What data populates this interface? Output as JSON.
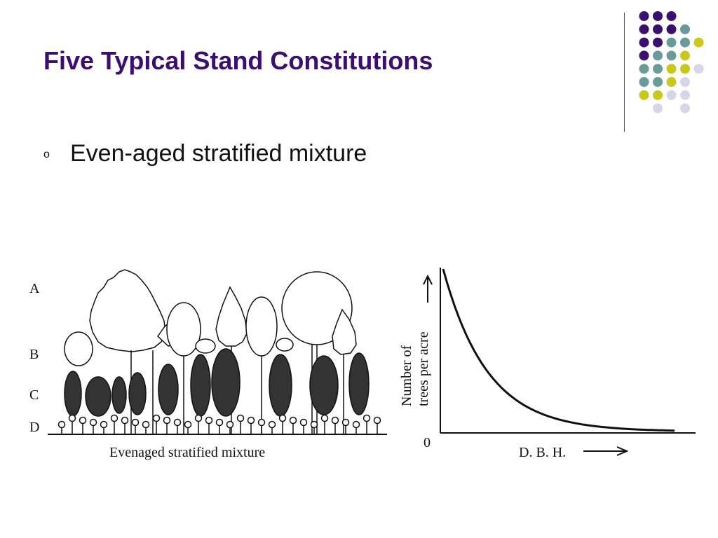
{
  "slide": {
    "title": "Five Typical Stand Constitutions",
    "bullet_marker": "o",
    "bullet_text": "Even-aged stratified mixture"
  },
  "figure": {
    "stratum_labels": [
      "A",
      "B",
      "C",
      "D"
    ],
    "stand_caption": "Evenaged stratified mixture",
    "graph_y_label_line1": "Number of",
    "graph_y_label_line2": "trees per acre",
    "graph_x_label": "D. B. H.",
    "graph_origin": "0"
  },
  "decor": {
    "colors": {
      "purple": "#3b0f6e",
      "teal": "#6b9a9a",
      "yellow": "#c8c81e",
      "lavender": "#d6d6e8"
    }
  }
}
